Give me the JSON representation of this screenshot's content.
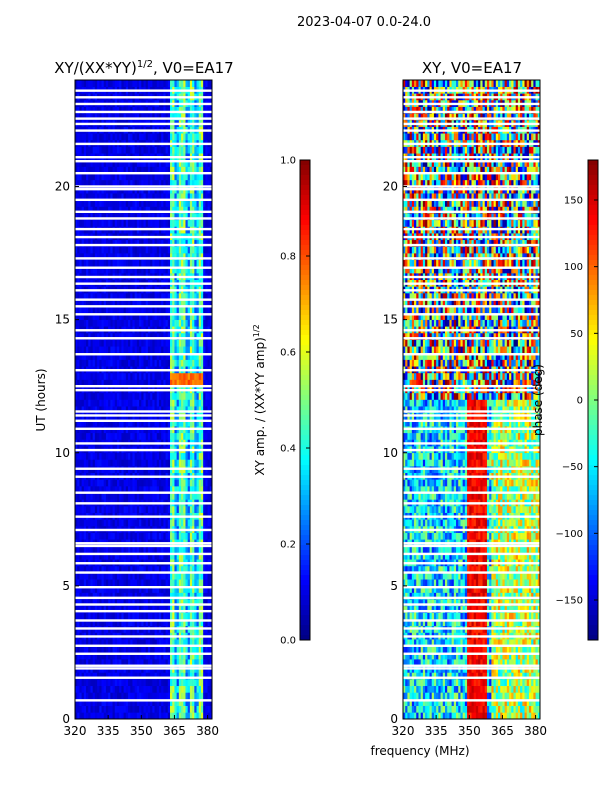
{
  "figure_title": "2023-04-07 0.0-24.0",
  "shared_xlabel": "frequency (MHz)",
  "chart_data": [
    {
      "type": "heatmap",
      "title": "XY/(XX*YY)^{1/2}, V0=EA17",
      "title_main": "XY/(XX*YY)",
      "title_sup": "1/2",
      "title_tail": ", V0=EA17",
      "xlabel": "frequency (MHz)",
      "ylabel": "UT (hours)",
      "xlim": [
        320,
        382
      ],
      "ylim": [
        0,
        24
      ],
      "xticks": [
        320,
        335,
        350,
        365,
        380
      ],
      "yticks": [
        0,
        5,
        10,
        15,
        20
      ],
      "colorbar": {
        "label": "XY amp. / (XX*YY amp)^{1/2}",
        "label_main": "XY amp. / (XX*YY amp)",
        "label_sup": "1/2",
        "range": [
          0.0,
          1.0
        ],
        "ticks": [
          "0.0",
          "0.2",
          "0.4",
          "0.6",
          "0.8",
          "1.0"
        ]
      },
      "colormap": "jet",
      "description": "amplitude mostly ~0.05-0.15 (dark blue); band 363-378 MHz elevated ~0.3-0.5 with vertical streaks; feature near 12.8 h at ~0.75"
    },
    {
      "type": "heatmap",
      "title": "XY, V0=EA17",
      "xlabel": "frequency (MHz)",
      "ylabel": "",
      "xlim": [
        320,
        382
      ],
      "ylim": [
        0,
        24
      ],
      "xticks": [
        320,
        335,
        350,
        365,
        380
      ],
      "yticks": [
        0,
        5,
        10,
        15,
        20
      ],
      "colorbar": {
        "label": "phase (deg)",
        "range": [
          -180,
          180
        ],
        "ticks": [
          "150",
          "100",
          "50",
          "0",
          "−50",
          "−100",
          "−150"
        ],
        "tick_values": [
          150,
          100,
          50,
          0,
          -50,
          -100,
          -150
        ]
      },
      "colormap": "jet",
      "description": "phase wraps across full range; red/orange band near 350-358 MHz below ~12 h"
    }
  ],
  "flagged_hours": [
    0.7,
    1.55,
    1.9,
    2.0,
    2.45,
    2.75,
    3.1,
    3.4,
    3.7,
    4.05,
    4.3,
    4.55,
    4.95,
    5.5,
    5.85,
    6.2,
    6.5,
    6.6,
    7.1,
    7.6,
    8.1,
    8.5,
    9.1,
    9.4,
    10.1,
    10.35,
    10.9,
    11.2,
    11.4,
    11.55,
    12.35,
    12.5,
    13.1,
    13.7,
    14.3,
    14.6,
    15.2,
    15.5,
    15.75,
    16.1,
    16.35,
    16.6,
    16.95,
    17.3,
    17.8,
    18.1,
    18.4,
    18.8,
    19.05,
    19.5,
    19.9,
    20.0,
    20.5,
    20.95,
    21.1,
    21.6,
    22.1,
    22.35,
    22.55,
    22.8,
    23.1,
    23.35,
    23.6
  ]
}
